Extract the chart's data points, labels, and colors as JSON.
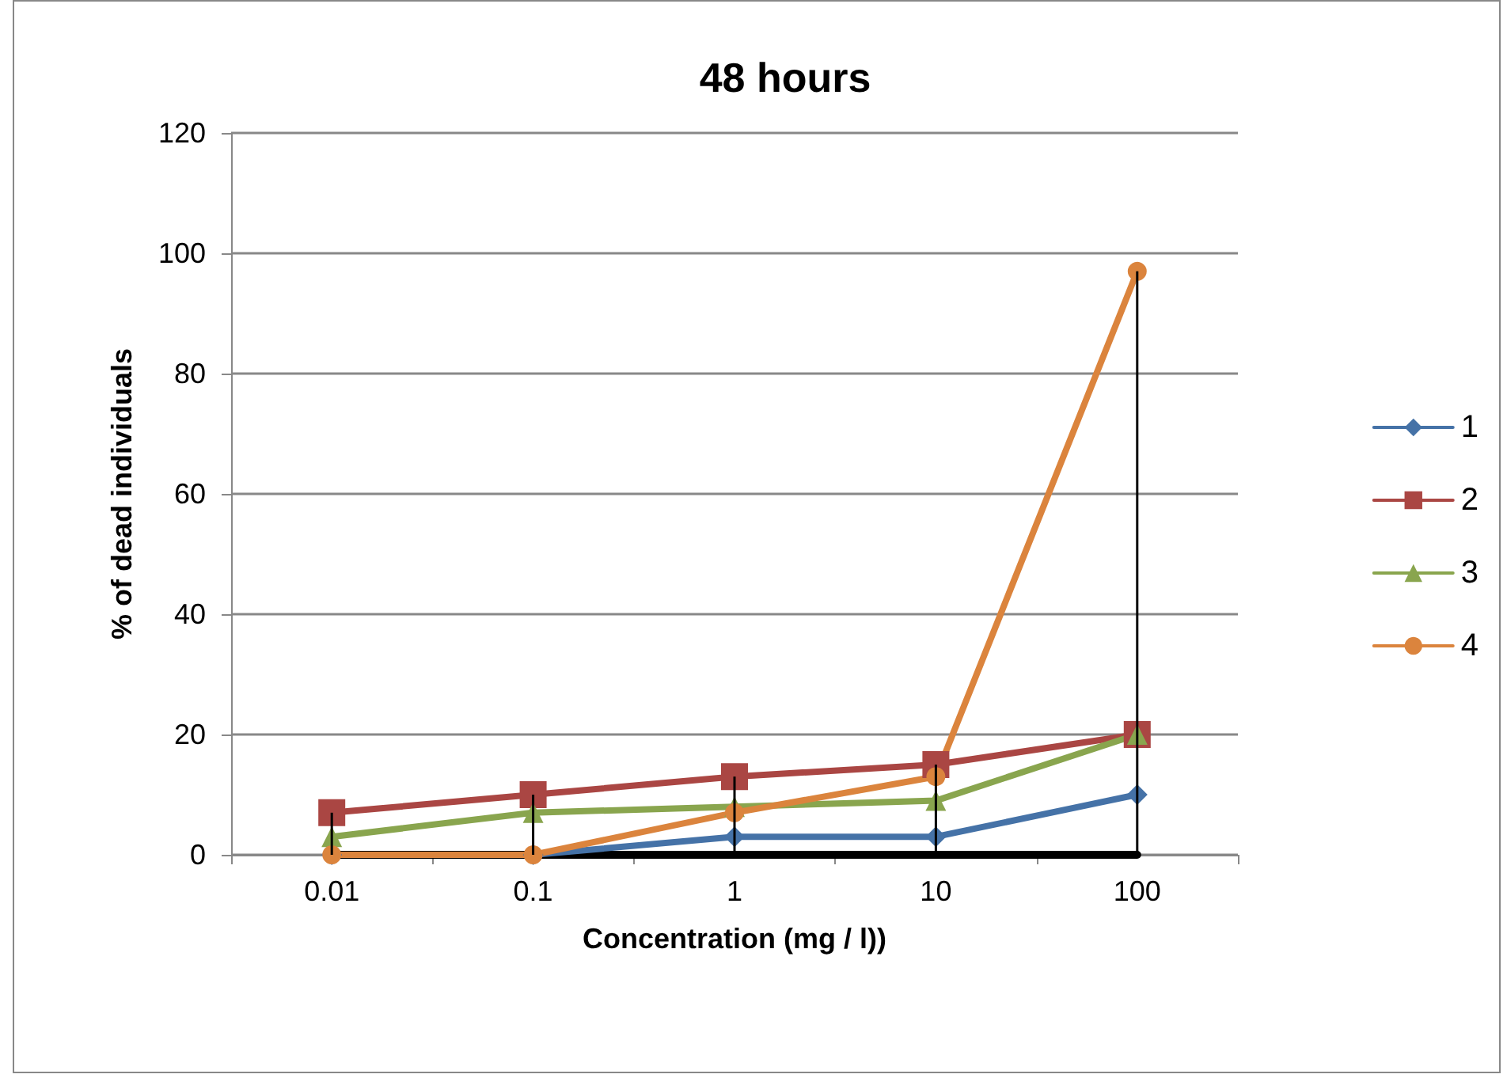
{
  "chart_data": {
    "type": "line",
    "title": "48 hours",
    "xlabel": "Concentration (mg / l))",
    "ylabel": "% of dead individuals",
    "categories": [
      "0.01",
      "0.1",
      "1",
      "10",
      "100"
    ],
    "series": [
      {
        "name": "1",
        "color": "#4572a7",
        "marker": "diamond",
        "values": [
          0,
          0,
          3,
          3,
          10
        ]
      },
      {
        "name": "2",
        "color": "#aa4643",
        "marker": "square",
        "values": [
          7,
          10,
          13,
          15,
          20
        ]
      },
      {
        "name": "3",
        "color": "#89a54e",
        "marker": "triangle",
        "values": [
          3,
          7,
          8,
          9,
          20
        ]
      },
      {
        "name": "4",
        "color": "#db843d",
        "marker": "circle",
        "values": [
          0,
          0,
          7,
          13,
          97
        ]
      },
      {
        "color": "#000000",
        "marker": "none",
        "values": [
          0,
          0,
          0,
          0,
          0
        ],
        "errors": [
          [
            0,
            7
          ],
          [
            0,
            10
          ],
          [
            0,
            13
          ],
          [
            0,
            15
          ],
          [
            0,
            97
          ]
        ]
      }
    ],
    "ylim": [
      0,
      120
    ],
    "yticks": [
      0,
      20,
      40,
      60,
      80,
      100,
      120
    ],
    "grid": "y",
    "legend": "right"
  }
}
